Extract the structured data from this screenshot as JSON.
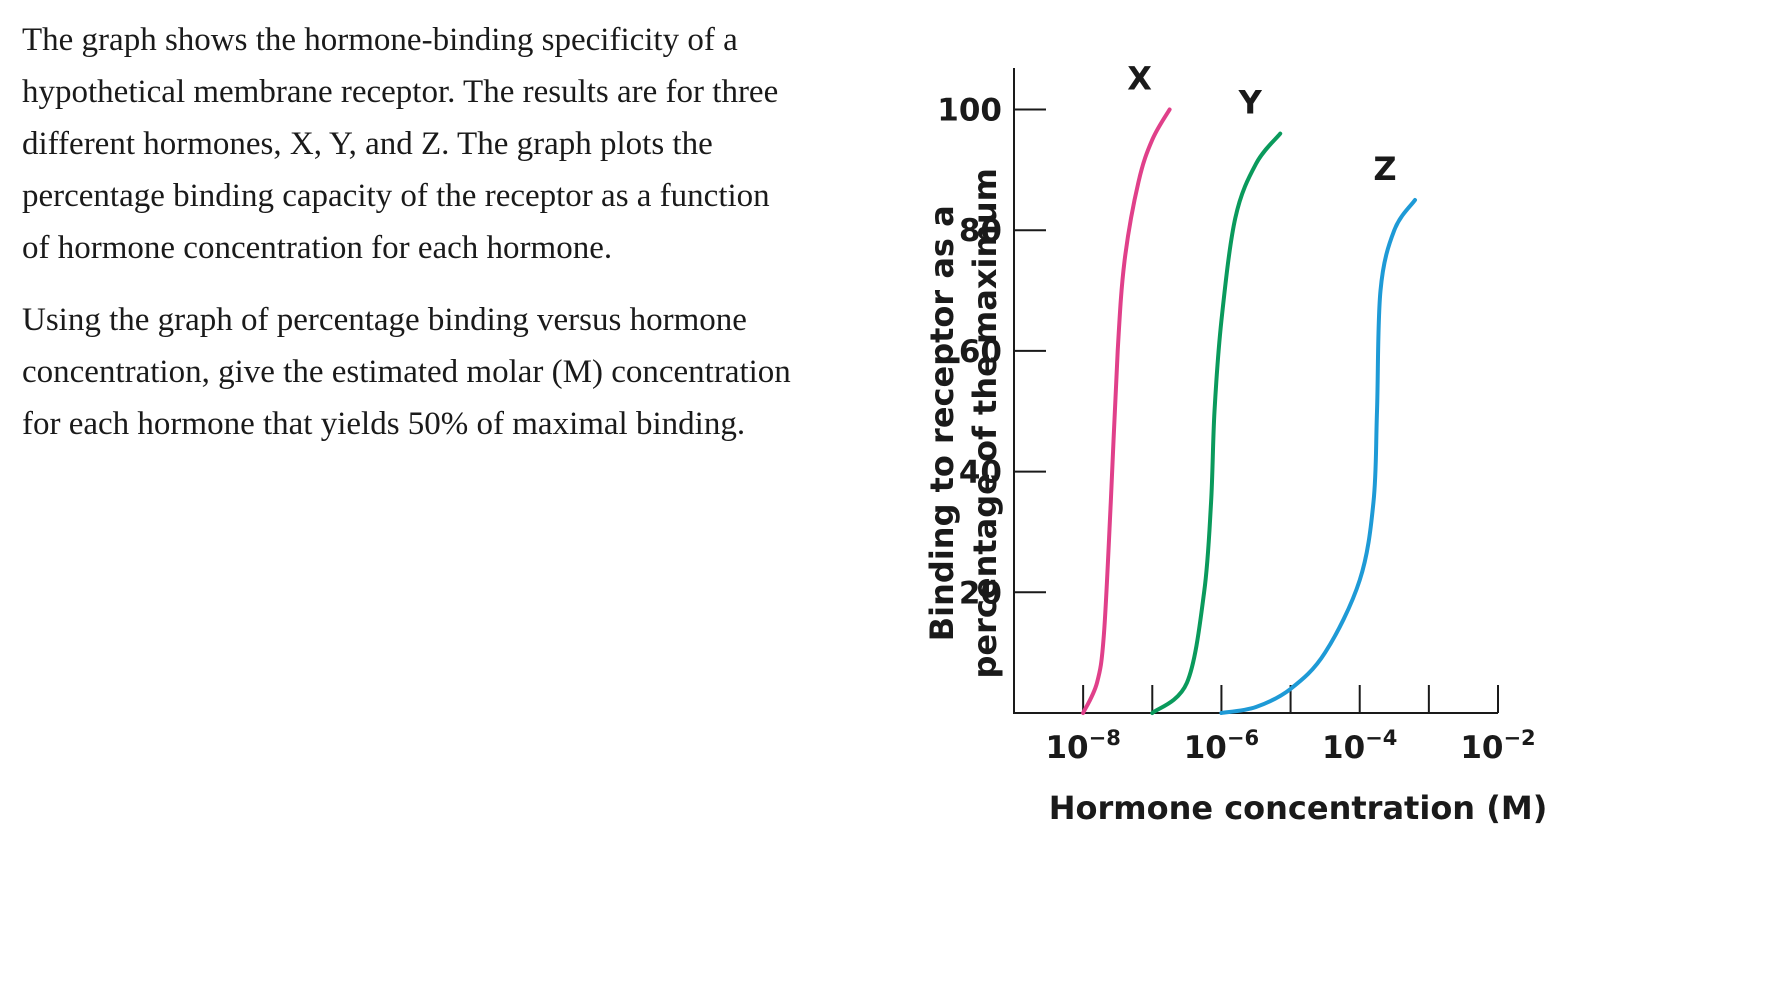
{
  "question": {
    "paragraph1": "The graph shows the hormone-binding specificity of a hypothetical membrane receptor. The results are for three different hormones, X, Y, and Z. The graph plots the percentage binding capacity of the receptor as a function of hormone concentration for each hormone.",
    "paragraph2": "Using the graph of percentage binding versus hormone concentration, give the estimated molar (M) concentration for each hormone that yields 50% of maximal binding."
  },
  "chart_data": {
    "type": "line",
    "title": "",
    "xlabel": "Hormone concentration (M)",
    "ylabel_line1": "Binding to receptor as a",
    "ylabel_line2": "percentage of the maximum",
    "x_scale": "log10",
    "xlim_log10": [
      -9,
      -2
    ],
    "ylim": [
      0,
      107
    ],
    "x_ticks_log10": [
      -8,
      -7,
      -6,
      -5,
      -4,
      -3,
      -2
    ],
    "x_tick_labels": [
      {
        "at_log10": -8,
        "base": "10",
        "exp": "−8"
      },
      {
        "at_log10": -6,
        "base": "10",
        "exp": "−6"
      },
      {
        "at_log10": -4,
        "base": "10",
        "exp": "−4"
      },
      {
        "at_log10": -2,
        "base": "10",
        "exp": "−2"
      }
    ],
    "y_ticks": [
      20,
      40,
      60,
      80,
      100
    ],
    "y_tick_labels": [
      "20",
      "40",
      "60",
      "80",
      "100"
    ],
    "grid": false,
    "series": [
      {
        "name": "X",
        "color": "#e0408a",
        "points": [
          [
            -8.0,
            0
          ],
          [
            -7.8,
            5
          ],
          [
            -7.7,
            13
          ],
          [
            -7.6,
            35
          ],
          [
            -7.5,
            60
          ],
          [
            -7.4,
            75
          ],
          [
            -7.2,
            88
          ],
          [
            -7.0,
            95
          ],
          [
            -6.75,
            100
          ]
        ]
      },
      {
        "name": "Y",
        "color": "#0a9a5c",
        "points": [
          [
            -7.0,
            0
          ],
          [
            -6.5,
            5
          ],
          [
            -6.25,
            20
          ],
          [
            -6.15,
            35
          ],
          [
            -6.1,
            50
          ],
          [
            -6.0,
            65
          ],
          [
            -5.8,
            82
          ],
          [
            -5.5,
            91
          ],
          [
            -5.15,
            96
          ]
        ]
      },
      {
        "name": "Z",
        "color": "#1e9ad6",
        "points": [
          [
            -6.0,
            0
          ],
          [
            -5.5,
            1
          ],
          [
            -5.0,
            4
          ],
          [
            -4.5,
            10
          ],
          [
            -4.0,
            22
          ],
          [
            -3.8,
            35
          ],
          [
            -3.75,
            50
          ],
          [
            -3.7,
            70
          ],
          [
            -3.5,
            80
          ],
          [
            -3.2,
            85
          ]
        ]
      }
    ]
  }
}
